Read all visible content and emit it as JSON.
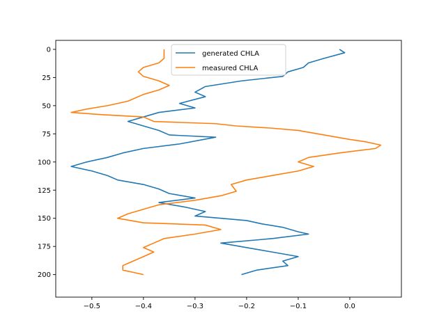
{
  "chart_data": {
    "type": "line",
    "x_ticks": [
      -0.5,
      -0.4,
      -0.3,
      -0.2,
      -0.1,
      0.0
    ],
    "x_tick_labels": [
      "−0.5",
      "−0.4",
      "−0.3",
      "−0.2",
      "−0.1",
      "0.0"
    ],
    "y_ticks": [
      0,
      25,
      50,
      75,
      100,
      125,
      150,
      175,
      200
    ],
    "y_tick_labels": [
      "0",
      "25",
      "50",
      "75",
      "100",
      "125",
      "150",
      "175",
      "200"
    ],
    "xlim": [
      -0.57,
      0.1
    ],
    "ylim": [
      0,
      210
    ],
    "y_inverted": true,
    "legend_position": "upper center",
    "series": [
      {
        "name": "generated CHLA",
        "color": "#1f77b4",
        "points": [
          [
            -0.02,
            0
          ],
          [
            -0.01,
            3
          ],
          [
            -0.05,
            8
          ],
          [
            -0.08,
            12
          ],
          [
            -0.09,
            16
          ],
          [
            -0.12,
            20
          ],
          [
            -0.13,
            24
          ],
          [
            -0.21,
            28
          ],
          [
            -0.28,
            33
          ],
          [
            -0.3,
            38
          ],
          [
            -0.28,
            42
          ],
          [
            -0.33,
            48
          ],
          [
            -0.3,
            52
          ],
          [
            -0.37,
            56
          ],
          [
            -0.4,
            60
          ],
          [
            -0.43,
            64
          ],
          [
            -0.4,
            68
          ],
          [
            -0.37,
            72
          ],
          [
            -0.35,
            76
          ],
          [
            -0.26,
            78
          ],
          [
            -0.33,
            84
          ],
          [
            -0.4,
            88
          ],
          [
            -0.44,
            92
          ],
          [
            -0.47,
            96
          ],
          [
            -0.51,
            100
          ],
          [
            -0.54,
            104
          ],
          [
            -0.5,
            108
          ],
          [
            -0.47,
            112
          ],
          [
            -0.45,
            116
          ],
          [
            -0.4,
            120
          ],
          [
            -0.37,
            124
          ],
          [
            -0.35,
            128
          ],
          [
            -0.3,
            132
          ],
          [
            -0.37,
            136
          ],
          [
            -0.32,
            140
          ],
          [
            -0.28,
            144
          ],
          [
            -0.3,
            148
          ],
          [
            -0.2,
            152
          ],
          [
            -0.17,
            155
          ],
          [
            -0.13,
            158
          ],
          [
            -0.1,
            162
          ],
          [
            -0.08,
            164
          ],
          [
            -0.15,
            168
          ],
          [
            -0.25,
            172
          ],
          [
            -0.2,
            176
          ],
          [
            -0.15,
            180
          ],
          [
            -0.1,
            184
          ],
          [
            -0.13,
            188
          ],
          [
            -0.12,
            192
          ],
          [
            -0.18,
            196
          ],
          [
            -0.21,
            200
          ]
        ]
      },
      {
        "name": "measured CHLA",
        "color": "#ff7f0e",
        "points": [
          [
            -0.36,
            0
          ],
          [
            -0.36,
            8
          ],
          [
            -0.37,
            12
          ],
          [
            -0.4,
            16
          ],
          [
            -0.41,
            20
          ],
          [
            -0.4,
            24
          ],
          [
            -0.37,
            28
          ],
          [
            -0.35,
            32
          ],
          [
            -0.37,
            36
          ],
          [
            -0.4,
            40
          ],
          [
            -0.43,
            46
          ],
          [
            -0.47,
            50
          ],
          [
            -0.51,
            53
          ],
          [
            -0.54,
            56
          ],
          [
            -0.48,
            58
          ],
          [
            -0.4,
            60
          ],
          [
            -0.38,
            64
          ],
          [
            -0.26,
            66
          ],
          [
            -0.22,
            68
          ],
          [
            -0.15,
            70
          ],
          [
            -0.1,
            72
          ],
          [
            -0.05,
            76
          ],
          [
            0.0,
            80
          ],
          [
            0.03,
            82
          ],
          [
            0.06,
            85
          ],
          [
            0.05,
            88
          ],
          [
            -0.02,
            92
          ],
          [
            -0.08,
            96
          ],
          [
            -0.1,
            100
          ],
          [
            -0.07,
            104
          ],
          [
            -0.1,
            108
          ],
          [
            -0.15,
            112
          ],
          [
            -0.2,
            116
          ],
          [
            -0.23,
            120
          ],
          [
            -0.22,
            126
          ],
          [
            -0.25,
            130
          ],
          [
            -0.3,
            134
          ],
          [
            -0.37,
            138
          ],
          [
            -0.4,
            142
          ],
          [
            -0.43,
            146
          ],
          [
            -0.45,
            150
          ],
          [
            -0.4,
            154
          ],
          [
            -0.28,
            156
          ],
          [
            -0.25,
            160
          ],
          [
            -0.3,
            164
          ],
          [
            -0.36,
            168
          ],
          [
            -0.38,
            172
          ],
          [
            -0.4,
            176
          ],
          [
            -0.38,
            180
          ],
          [
            -0.4,
            184
          ],
          [
            -0.42,
            188
          ],
          [
            -0.44,
            192
          ],
          [
            -0.44,
            196
          ],
          [
            -0.42,
            198
          ],
          [
            -0.4,
            200
          ]
        ]
      }
    ]
  }
}
